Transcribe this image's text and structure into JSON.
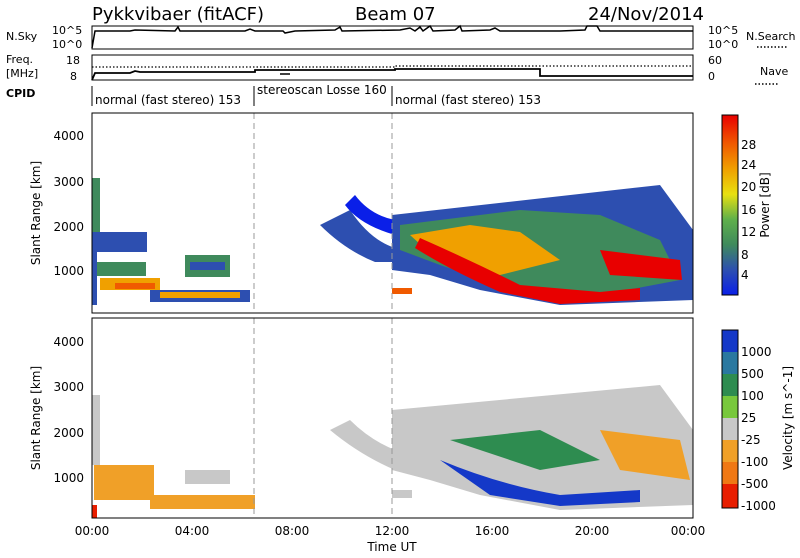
{
  "header": {
    "station": "Pykkvibaer (fitACF)",
    "beam": "Beam 07",
    "date": "24/Nov/2014"
  },
  "ops_panels": {
    "nsky_label": "N.Sky",
    "nsearch_label": "N.Search",
    "freq_label_1": "Freq.",
    "freq_label_2": "[MHz]",
    "nave_label": "Nave",
    "cpid_label": "CPID",
    "nsky_left_ticks": [
      "10^5",
      "10^0"
    ],
    "nsky_right_ticks": [
      "10^5",
      "10^0"
    ],
    "freq_left_ticks": [
      "18",
      "8"
    ],
    "nave_right_ticks": [
      "60",
      "0"
    ],
    "cpid_segments": [
      {
        "label": "normal (fast stereo) 153",
        "start_h": 0,
        "end_h": 6.5
      },
      {
        "label": "stereoscan Losse 160",
        "start_h": 6.5,
        "end_h": 12
      },
      {
        "label": "normal (fast stereo) 153",
        "start_h": 12,
        "end_h": 24
      }
    ]
  },
  "chart_data": [
    {
      "type": "heatmap",
      "panel": "power",
      "ylabel": "Slant Range [km]",
      "yticks": [
        "1000",
        "2000",
        "3000",
        "4000"
      ],
      "ylim": [
        180,
        4600
      ],
      "colorbar_label": "Power [dB]",
      "colorbar_ticks": [
        "4",
        "8",
        "12",
        "16",
        "20",
        "24",
        "28"
      ],
      "colorbar_colors": [
        "#0a1fe8",
        "#2d4fb0",
        "#3f8a5c",
        "#5fb04a",
        "#e8e010",
        "#f0a000",
        "#f05a00",
        "#e80000"
      ]
    },
    {
      "type": "heatmap",
      "panel": "velocity",
      "ylabel": "Slant Range [km]",
      "yticks": [
        "1000",
        "2000",
        "3000",
        "4000"
      ],
      "ylim": [
        180,
        4600
      ],
      "xlabel": "Time UT",
      "xticks": [
        "00:00",
        "04:00",
        "08:00",
        "12:00",
        "16:00",
        "20:00",
        "00:00"
      ],
      "colorbar_label": "Velocity [m s^-1]",
      "colorbar_ticks": [
        "1000",
        "500",
        "100",
        "25",
        "-25",
        "-100",
        "-500",
        "-1000"
      ],
      "colorbar_colors": [
        "#1438c8",
        "#2a78a0",
        "#2e8c50",
        "#78c83c",
        "#c8c8c8",
        "#f0a028",
        "#f07814",
        "#e81e00"
      ]
    }
  ]
}
